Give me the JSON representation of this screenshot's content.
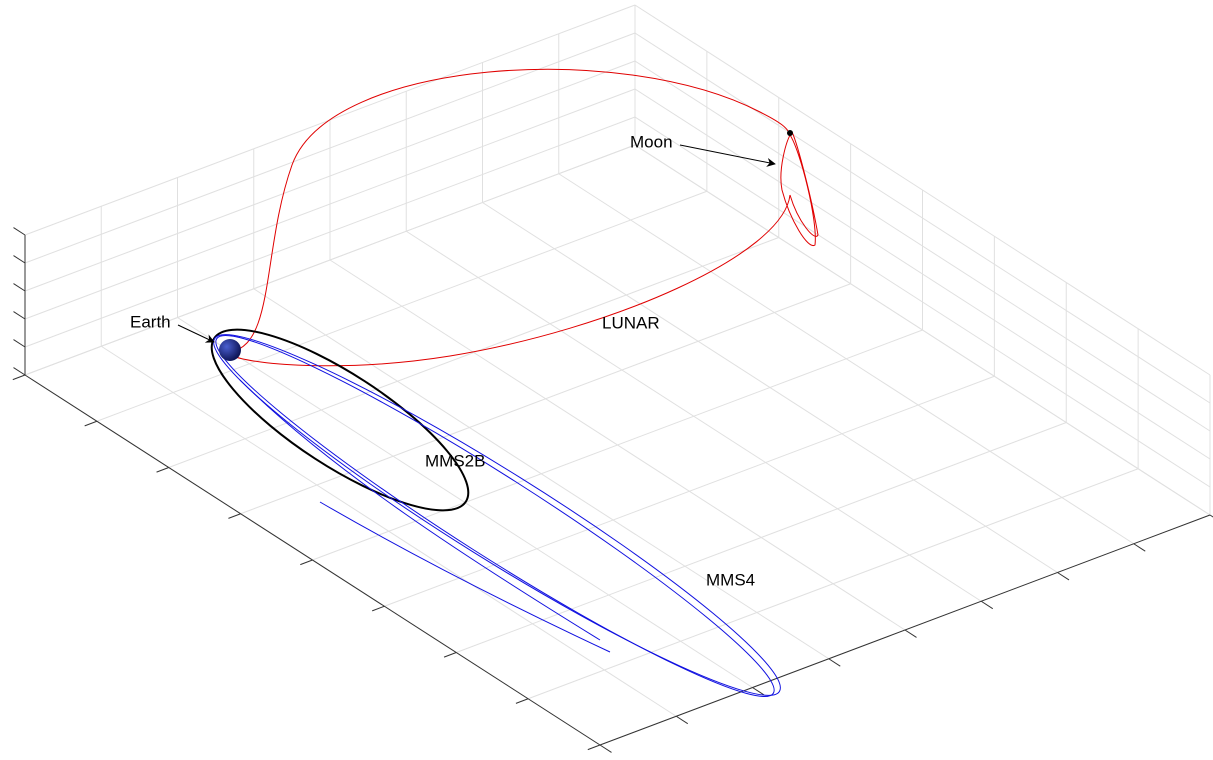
{
  "labels": {
    "earth": "Earth",
    "moon": "Moon",
    "lunar": "LUNAR",
    "mms2b": "MMS2B",
    "mms4": "MMS4"
  }
}
